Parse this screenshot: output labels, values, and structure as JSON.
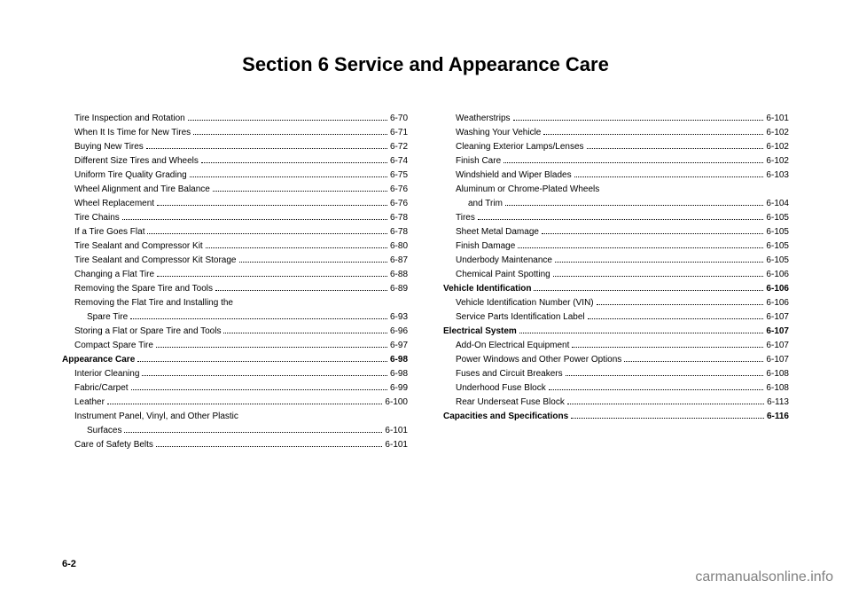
{
  "title": "Section 6    Service and Appearance Care",
  "page_number": "6-2",
  "watermark": "carmanualsonline.info",
  "col1": [
    {
      "label": "Tire Inspection and Rotation",
      "page": "6-70",
      "cls": "toc-sub"
    },
    {
      "label": "When It Is Time for New Tires",
      "page": "6-71",
      "cls": "toc-sub"
    },
    {
      "label": "Buying New Tires",
      "page": "6-72",
      "cls": "toc-sub"
    },
    {
      "label": "Different Size Tires and Wheels",
      "page": "6-74",
      "cls": "toc-sub"
    },
    {
      "label": "Uniform Tire Quality Grading",
      "page": "6-75",
      "cls": "toc-sub"
    },
    {
      "label": "Wheel Alignment and Tire Balance",
      "page": "6-76",
      "cls": "toc-sub"
    },
    {
      "label": "Wheel Replacement",
      "page": "6-76",
      "cls": "toc-sub"
    },
    {
      "label": "Tire Chains",
      "page": "6-78",
      "cls": "toc-sub"
    },
    {
      "label": "If a Tire Goes Flat",
      "page": "6-78",
      "cls": "toc-sub"
    },
    {
      "label": "Tire Sealant and Compressor Kit",
      "page": "6-80",
      "cls": "toc-sub"
    },
    {
      "label": "Tire Sealant and Compressor Kit Storage",
      "page": "6-87",
      "cls": "toc-sub"
    },
    {
      "label": "Changing a Flat Tire",
      "page": "6-88",
      "cls": "toc-sub"
    },
    {
      "label": "Removing the Spare Tire and Tools",
      "page": "6-89",
      "cls": "toc-sub"
    },
    {
      "label": "Removing the Flat Tire and Installing the",
      "page": "",
      "cls": "toc-sub",
      "nowrap": true
    },
    {
      "label": "Spare Tire",
      "page": "6-93",
      "cls": "toc-sub2"
    },
    {
      "label": "Storing a Flat or Spare Tire and Tools",
      "page": "6-96",
      "cls": "toc-sub"
    },
    {
      "label": "Compact Spare Tire",
      "page": "6-97",
      "cls": "toc-sub"
    },
    {
      "label": "Appearance Care",
      "page": "6-98",
      "cls": "toc-heading"
    },
    {
      "label": "Interior Cleaning",
      "page": "6-98",
      "cls": "toc-sub"
    },
    {
      "label": "Fabric/Carpet",
      "page": "6-99",
      "cls": "toc-sub"
    },
    {
      "label": "Leather",
      "page": "6-100",
      "cls": "toc-sub"
    },
    {
      "label": "Instrument Panel, Vinyl, and Other Plastic",
      "page": "",
      "cls": "toc-sub",
      "nowrap": true
    },
    {
      "label": "Surfaces",
      "page": "6-101",
      "cls": "toc-sub2"
    },
    {
      "label": "Care of Safety Belts",
      "page": "6-101",
      "cls": "toc-sub"
    }
  ],
  "col2": [
    {
      "label": "Weatherstrips",
      "page": "6-101",
      "cls": "toc-sub"
    },
    {
      "label": "Washing Your Vehicle",
      "page": "6-102",
      "cls": "toc-sub"
    },
    {
      "label": "Cleaning Exterior Lamps/Lenses",
      "page": "6-102",
      "cls": "toc-sub"
    },
    {
      "label": "Finish Care",
      "page": "6-102",
      "cls": "toc-sub"
    },
    {
      "label": "Windshield and Wiper Blades",
      "page": "6-103",
      "cls": "toc-sub"
    },
    {
      "label": "Aluminum or Chrome-Plated Wheels",
      "page": "",
      "cls": "toc-sub",
      "nowrap": true
    },
    {
      "label": "and Trim",
      "page": "6-104",
      "cls": "toc-sub2"
    },
    {
      "label": "Tires",
      "page": "6-105",
      "cls": "toc-sub"
    },
    {
      "label": "Sheet Metal Damage",
      "page": "6-105",
      "cls": "toc-sub"
    },
    {
      "label": "Finish Damage",
      "page": "6-105",
      "cls": "toc-sub"
    },
    {
      "label": "Underbody Maintenance",
      "page": "6-105",
      "cls": "toc-sub"
    },
    {
      "label": "Chemical Paint Spotting",
      "page": "6-106",
      "cls": "toc-sub"
    },
    {
      "label": "Vehicle Identification",
      "page": "6-106",
      "cls": "toc-heading"
    },
    {
      "label": "Vehicle Identification Number (VIN)",
      "page": "6-106",
      "cls": "toc-sub"
    },
    {
      "label": "Service Parts Identification Label",
      "page": "6-107",
      "cls": "toc-sub"
    },
    {
      "label": "Electrical System",
      "page": "6-107",
      "cls": "toc-heading"
    },
    {
      "label": "Add-On Electrical Equipment",
      "page": "6-107",
      "cls": "toc-sub"
    },
    {
      "label": "Power Windows and Other Power Options",
      "page": "6-107",
      "cls": "toc-sub"
    },
    {
      "label": "Fuses and Circuit Breakers",
      "page": "6-108",
      "cls": "toc-sub"
    },
    {
      "label": "Underhood Fuse Block",
      "page": "6-108",
      "cls": "toc-sub"
    },
    {
      "label": "Rear Underseat Fuse Block",
      "page": "6-113",
      "cls": "toc-sub"
    },
    {
      "label": "Capacities and Specifications",
      "page": "6-116",
      "cls": "toc-heading"
    }
  ]
}
